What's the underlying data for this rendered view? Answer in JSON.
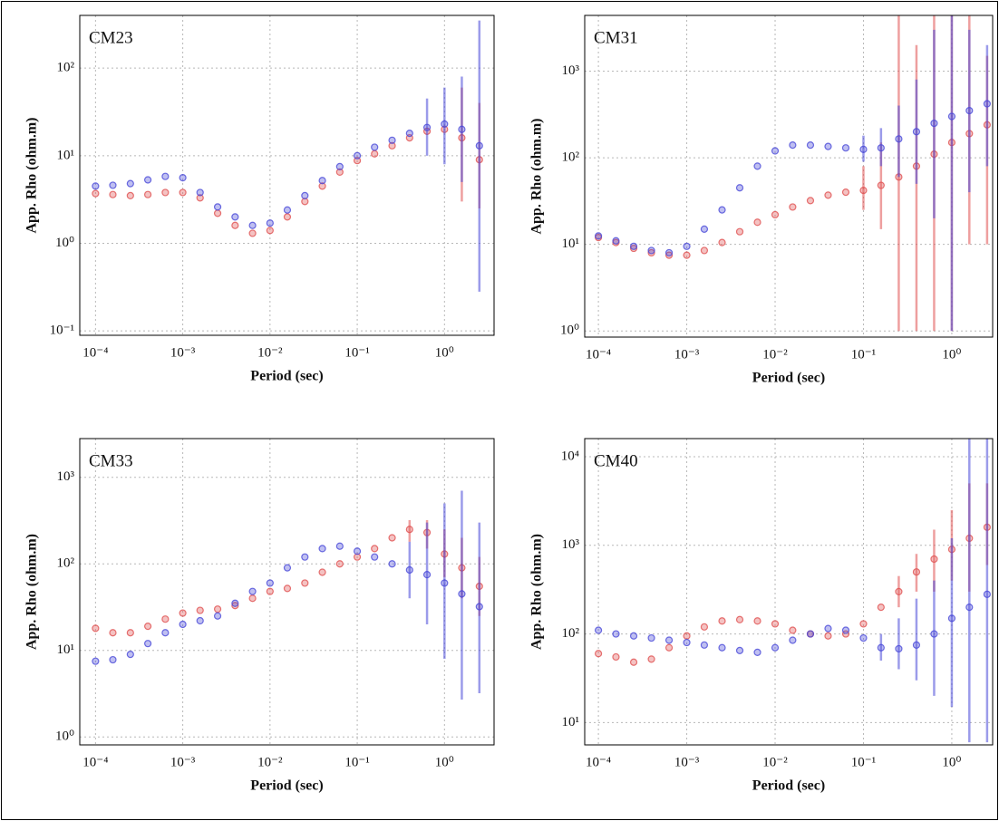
{
  "chart_data": [
    {
      "type": "scatter",
      "title": "CM23",
      "x_label": "Period (sec)",
      "y_label": "App. Rho (ohm.m)",
      "xscale": "log",
      "yscale": "log",
      "grid": true,
      "x": [
        0.0001,
        0.000158,
        0.000251,
        0.000398,
        0.000631,
        0.001,
        0.00158,
        0.00251,
        0.00398,
        0.00631,
        0.01,
        0.0158,
        0.0251,
        0.0398,
        0.0631,
        0.1,
        0.158,
        0.251,
        0.398,
        0.631,
        1,
        1.58,
        2.51
      ],
      "xlim": [
        6.6e-05,
        3.7
      ],
      "ylim": [
        0.089,
        400
      ],
      "xticks": [
        {
          "value": 0.0001,
          "label": "10⁻⁴"
        },
        {
          "value": 0.001,
          "label": "10⁻³"
        },
        {
          "value": 0.01,
          "label": "10⁻²"
        },
        {
          "value": 0.1,
          "label": "10⁻¹"
        },
        {
          "value": 1,
          "label": "10⁰"
        }
      ],
      "yticks": [
        {
          "value": 0.1,
          "label": "10⁻¹"
        },
        {
          "value": 1,
          "label": "10⁰"
        },
        {
          "value": 10,
          "label": "10¹"
        },
        {
          "value": 100,
          "label": "10²"
        }
      ],
      "series": [
        {
          "color": "#e05050",
          "values": [
            3.7,
            3.6,
            3.5,
            3.6,
            3.8,
            3.8,
            3.3,
            2.2,
            1.6,
            1.3,
            1.4,
            2.0,
            3.0,
            4.5,
            6.5,
            8.8,
            10.5,
            13,
            16,
            19,
            20,
            16,
            9
          ],
          "error_low": [
            null,
            null,
            null,
            null,
            null,
            null,
            null,
            null,
            null,
            null,
            null,
            null,
            null,
            null,
            null,
            null,
            null,
            null,
            null,
            null,
            null,
            3,
            2.5
          ],
          "error_high": [
            null,
            null,
            null,
            null,
            null,
            null,
            null,
            null,
            null,
            null,
            null,
            null,
            null,
            null,
            null,
            null,
            null,
            null,
            null,
            null,
            null,
            60,
            40
          ]
        },
        {
          "color": "#4848d8",
          "values": [
            4.5,
            4.6,
            4.8,
            5.3,
            5.8,
            5.6,
            3.8,
            2.6,
            2.0,
            1.6,
            1.7,
            2.4,
            3.5,
            5.2,
            7.5,
            10,
            12.5,
            15,
            18,
            21,
            23,
            20,
            13
          ],
          "error_low": [
            null,
            null,
            null,
            null,
            null,
            null,
            null,
            null,
            null,
            null,
            null,
            null,
            null,
            null,
            null,
            null,
            null,
            null,
            null,
            10,
            8,
            5,
            0.28
          ],
          "error_high": [
            null,
            null,
            null,
            null,
            null,
            null,
            null,
            null,
            null,
            null,
            null,
            null,
            null,
            null,
            null,
            null,
            null,
            null,
            null,
            45,
            60,
            80,
            350
          ]
        }
      ]
    },
    {
      "type": "scatter",
      "title": "CM31",
      "x_label": "Period (sec)",
      "y_label": "App. Rho (ohm.m)",
      "xscale": "log",
      "yscale": "log",
      "grid": true,
      "x": [
        0.0001,
        0.000158,
        0.000251,
        0.000398,
        0.000631,
        0.001,
        0.00158,
        0.00251,
        0.00398,
        0.00631,
        0.01,
        0.0158,
        0.0251,
        0.0398,
        0.0631,
        0.1,
        0.158,
        0.251,
        0.398,
        0.631,
        1,
        1.58,
        2.51
      ],
      "xlim": [
        7e-05,
        2.9
      ],
      "ylim": [
        0.85,
        4400
      ],
      "xticks": [
        {
          "value": 0.0001,
          "label": "10⁻⁴"
        },
        {
          "value": 0.001,
          "label": "10⁻³"
        },
        {
          "value": 0.01,
          "label": "10⁻²"
        },
        {
          "value": 0.1,
          "label": "10⁻¹"
        },
        {
          "value": 1,
          "label": "10⁰"
        }
      ],
      "yticks": [
        {
          "value": 1,
          "label": "10⁰"
        },
        {
          "value": 10,
          "label": "10¹"
        },
        {
          "value": 100,
          "label": "10²"
        },
        {
          "value": 1000,
          "label": "10³"
        }
      ],
      "series": [
        {
          "color": "#e05050",
          "values": [
            12,
            10.5,
            9,
            8,
            7.5,
            7.5,
            8.5,
            10.5,
            14,
            18,
            22,
            27,
            32,
            37,
            40,
            42,
            48,
            60,
            80,
            110,
            150,
            190,
            240
          ],
          "error_low": [
            null,
            null,
            null,
            null,
            null,
            null,
            null,
            null,
            null,
            null,
            null,
            null,
            null,
            null,
            null,
            25,
            15,
            1,
            1,
            1,
            1,
            10,
            10
          ],
          "error_high": [
            null,
            null,
            null,
            null,
            null,
            null,
            null,
            null,
            null,
            null,
            null,
            null,
            null,
            null,
            null,
            80,
            150,
            4400,
            2000,
            4400,
            4400,
            4400,
            1500
          ]
        },
        {
          "color": "#4848d8",
          "values": [
            12.5,
            11,
            9.5,
            8.5,
            8,
            9.5,
            15,
            25,
            45,
            80,
            120,
            140,
            140,
            135,
            130,
            125,
            130,
            165,
            200,
            250,
            300,
            350,
            420
          ],
          "error_low": [
            null,
            null,
            null,
            null,
            null,
            null,
            null,
            null,
            null,
            null,
            null,
            null,
            null,
            null,
            null,
            90,
            80,
            60,
            50,
            20,
            1,
            40,
            80
          ],
          "error_high": [
            null,
            null,
            null,
            null,
            null,
            null,
            null,
            null,
            null,
            null,
            null,
            null,
            null,
            null,
            null,
            180,
            220,
            400,
            800,
            3000,
            4400,
            3000,
            2000
          ]
        }
      ]
    },
    {
      "type": "scatter",
      "title": "CM33",
      "x_label": "Period (sec)",
      "y_label": "App. Rho (ohm.m)",
      "xscale": "log",
      "yscale": "log",
      "grid": true,
      "x": [
        0.0001,
        0.000158,
        0.000251,
        0.000398,
        0.000631,
        0.001,
        0.00158,
        0.00251,
        0.00398,
        0.00631,
        0.01,
        0.0158,
        0.0251,
        0.0398,
        0.0631,
        0.1,
        0.158,
        0.251,
        0.398,
        0.631,
        1,
        1.58,
        2.51
      ],
      "xlim": [
        6.6e-05,
        3.7
      ],
      "ylim": [
        0.81,
        2800
      ],
      "xticks": [
        {
          "value": 0.0001,
          "label": "10⁻⁴"
        },
        {
          "value": 0.001,
          "label": "10⁻³"
        },
        {
          "value": 0.01,
          "label": "10⁻²"
        },
        {
          "value": 0.1,
          "label": "10⁻¹"
        },
        {
          "value": 1,
          "label": "10⁰"
        }
      ],
      "yticks": [
        {
          "value": 1,
          "label": "10⁰"
        },
        {
          "value": 10,
          "label": "10¹"
        },
        {
          "value": 100,
          "label": "10²"
        },
        {
          "value": 1000,
          "label": "10³"
        }
      ],
      "series": [
        {
          "color": "#e05050",
          "values": [
            18,
            16,
            16,
            19,
            23,
            27,
            29,
            30,
            33,
            40,
            48,
            52,
            60,
            80,
            100,
            120,
            150,
            200,
            250,
            230,
            130,
            90,
            55
          ],
          "error_low": [
            null,
            null,
            null,
            null,
            null,
            null,
            null,
            null,
            null,
            null,
            null,
            null,
            null,
            null,
            null,
            null,
            null,
            null,
            180,
            150,
            70,
            40,
            25
          ],
          "error_high": [
            null,
            null,
            null,
            null,
            null,
            null,
            null,
            null,
            null,
            null,
            null,
            null,
            null,
            null,
            null,
            null,
            null,
            null,
            320,
            320,
            250,
            200,
            120
          ]
        },
        {
          "color": "#4848d8",
          "values": [
            7.5,
            7.8,
            9,
            12,
            16,
            20,
            22,
            25,
            35,
            48,
            60,
            90,
            120,
            150,
            160,
            140,
            120,
            100,
            85,
            75,
            60,
            45,
            32
          ],
          "error_low": [
            null,
            null,
            null,
            null,
            null,
            null,
            null,
            null,
            null,
            null,
            null,
            null,
            null,
            null,
            null,
            null,
            null,
            null,
            40,
            20,
            8,
            2.7,
            3.2
          ],
          "error_high": [
            null,
            null,
            null,
            null,
            null,
            null,
            null,
            null,
            null,
            null,
            null,
            null,
            null,
            null,
            null,
            null,
            null,
            null,
            180,
            300,
            500,
            700,
            300
          ]
        }
      ]
    },
    {
      "type": "scatter",
      "title": "CM40",
      "x_label": "Period (sec)",
      "y_label": "App. Rho (ohm.m)",
      "xscale": "log",
      "yscale": "log",
      "grid": true,
      "x": [
        0.0001,
        0.000158,
        0.000251,
        0.000398,
        0.000631,
        0.001,
        0.00158,
        0.00251,
        0.00398,
        0.00631,
        0.01,
        0.0158,
        0.0251,
        0.0398,
        0.0631,
        0.1,
        0.158,
        0.251,
        0.398,
        0.631,
        1,
        1.58,
        2.51
      ],
      "xlim": [
        7e-05,
        2.9
      ],
      "ylim": [
        5.6,
        16000
      ],
      "xticks": [
        {
          "value": 0.0001,
          "label": "10⁻⁴"
        },
        {
          "value": 0.001,
          "label": "10⁻³"
        },
        {
          "value": 0.01,
          "label": "10⁻²"
        },
        {
          "value": 0.1,
          "label": "10⁻¹"
        },
        {
          "value": 1,
          "label": "10⁰"
        }
      ],
      "yticks": [
        {
          "value": 10,
          "label": "10¹"
        },
        {
          "value": 100,
          "label": "10²"
        },
        {
          "value": 1000,
          "label": "10³"
        },
        {
          "value": 10000,
          "label": "10⁴"
        }
      ],
      "series": [
        {
          "color": "#e05050",
          "values": [
            60,
            55,
            48,
            52,
            70,
            95,
            120,
            140,
            145,
            140,
            130,
            110,
            100,
            95,
            100,
            130,
            200,
            300,
            500,
            700,
            900,
            1200,
            1600
          ],
          "error_low": [
            null,
            null,
            null,
            null,
            null,
            null,
            null,
            null,
            null,
            null,
            null,
            null,
            null,
            null,
            null,
            null,
            null,
            200,
            300,
            300,
            400,
            300,
            600
          ],
          "error_high": [
            null,
            null,
            null,
            null,
            null,
            null,
            null,
            null,
            null,
            null,
            null,
            null,
            null,
            null,
            null,
            null,
            null,
            450,
            800,
            1500,
            2500,
            5000,
            5000
          ]
        },
        {
          "color": "#4848d8",
          "values": [
            110,
            100,
            95,
            90,
            85,
            80,
            75,
            70,
            65,
            62,
            70,
            85,
            100,
            115,
            110,
            90,
            70,
            68,
            75,
            100,
            150,
            200,
            280
          ],
          "error_low": [
            null,
            null,
            null,
            null,
            null,
            null,
            null,
            null,
            null,
            null,
            null,
            null,
            null,
            null,
            null,
            null,
            50,
            40,
            30,
            20,
            15,
            6,
            6
          ],
          "error_high": [
            null,
            null,
            null,
            null,
            null,
            null,
            null,
            null,
            null,
            null,
            null,
            null,
            null,
            null,
            null,
            null,
            100,
            150,
            250,
            400,
            1200,
            16000,
            16000
          ]
        }
      ]
    }
  ]
}
